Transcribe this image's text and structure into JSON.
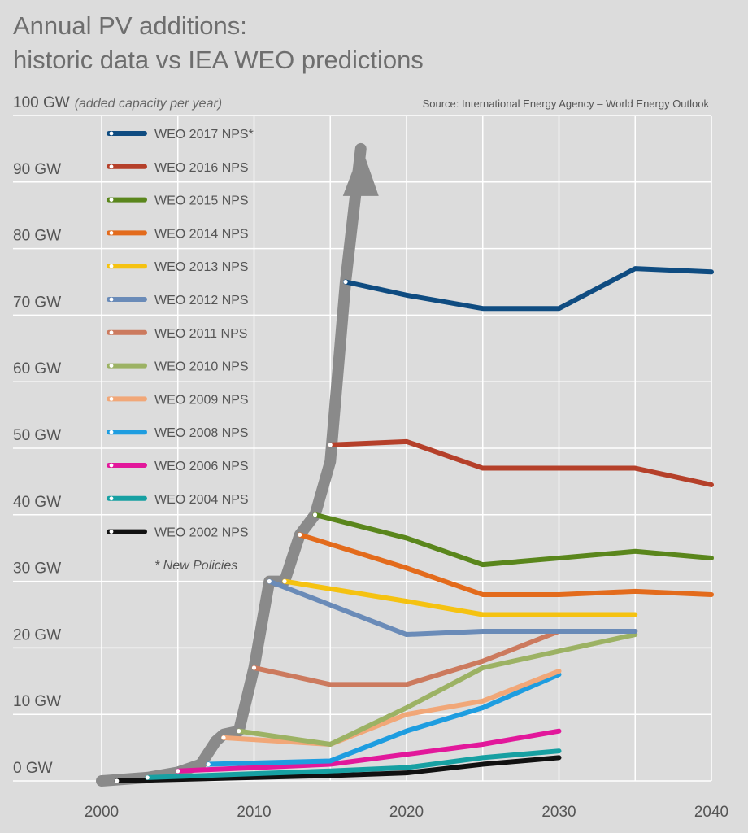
{
  "chart_data": {
    "type": "line",
    "title_line1": "Annual PV additions:",
    "title_line2": "historic data vs IEA WEO predictions",
    "ylabel": "100 GW",
    "ylabel_note": "(added capacity per year)",
    "source": "Source: International Energy Agency – World Energy Outlook",
    "footnote": "* New Policies",
    "x_ticks": [
      2000,
      2010,
      2020,
      2030,
      2040
    ],
    "y_ticks": [
      {
        "v": 0,
        "label": "0 GW"
      },
      {
        "v": 10,
        "label": "10 GW"
      },
      {
        "v": 20,
        "label": "20 GW"
      },
      {
        "v": 30,
        "label": "30 GW"
      },
      {
        "v": 40,
        "label": "40 GW"
      },
      {
        "v": 50,
        "label": "50 GW"
      },
      {
        "v": 60,
        "label": "60 GW"
      },
      {
        "v": 70,
        "label": "70 GW"
      },
      {
        "v": 80,
        "label": "80 GW"
      },
      {
        "v": 90,
        "label": "90 GW"
      }
    ],
    "xlim": [
      2000,
      2040
    ],
    "ylim": [
      0,
      100
    ],
    "grid": true,
    "legend_position": "top-left",
    "historic": {
      "color": "#8a8a8a",
      "points": [
        [
          2000,
          0
        ],
        [
          2003,
          0.5
        ],
        [
          2005,
          1.3
        ],
        [
          2006.5,
          2.5
        ],
        [
          2007.5,
          6
        ],
        [
          2008,
          7
        ],
        [
          2009,
          7.5
        ],
        [
          2010,
          17
        ],
        [
          2011,
          30
        ],
        [
          2012,
          30
        ],
        [
          2013,
          37
        ],
        [
          2014,
          40
        ],
        [
          2015,
          48
        ],
        [
          2016,
          75
        ],
        [
          2017,
          95
        ]
      ]
    },
    "series": [
      {
        "name": "WEO 2017 NPS*",
        "color": "#0f4c81",
        "points": [
          [
            2016,
            75
          ],
          [
            2020,
            73
          ],
          [
            2025,
            71
          ],
          [
            2030,
            71
          ],
          [
            2035,
            77
          ],
          [
            2040,
            76.5
          ]
        ]
      },
      {
        "name": "WEO 2016 NPS",
        "color": "#b5402a",
        "points": [
          [
            2015,
            50.5
          ],
          [
            2020,
            51
          ],
          [
            2025,
            47
          ],
          [
            2030,
            47
          ],
          [
            2035,
            47
          ],
          [
            2040,
            44.5
          ]
        ]
      },
      {
        "name": "WEO 2015 NPS",
        "color": "#5a861c",
        "points": [
          [
            2014,
            40
          ],
          [
            2020,
            36.5
          ],
          [
            2025,
            32.5
          ],
          [
            2030,
            33.5
          ],
          [
            2035,
            34.5
          ],
          [
            2040,
            33.5
          ]
        ]
      },
      {
        "name": "WEO 2014 NPS",
        "color": "#e36b1c",
        "points": [
          [
            2013,
            37
          ],
          [
            2020,
            32
          ],
          [
            2025,
            28
          ],
          [
            2030,
            28
          ],
          [
            2035,
            28.5
          ],
          [
            2040,
            28
          ]
        ]
      },
      {
        "name": "WEO 2013 NPS",
        "color": "#f5c211",
        "points": [
          [
            2012,
            30
          ],
          [
            2020,
            27
          ],
          [
            2025,
            25
          ],
          [
            2030,
            25
          ],
          [
            2035,
            25
          ]
        ]
      },
      {
        "name": "WEO 2012 NPS",
        "color": "#6a8bb8",
        "points": [
          [
            2011,
            30
          ],
          [
            2020,
            22
          ],
          [
            2025,
            22.5
          ],
          [
            2030,
            22.5
          ],
          [
            2035,
            22.5
          ]
        ]
      },
      {
        "name": "WEO 2011 NPS",
        "color": "#cc7a5e",
        "points": [
          [
            2010,
            17
          ],
          [
            2015,
            14.5
          ],
          [
            2020,
            14.5
          ],
          [
            2025,
            18
          ],
          [
            2030,
            22.5
          ],
          [
            2035,
            22.5
          ]
        ]
      },
      {
        "name": "WEO 2010 NPS",
        "color": "#9cb264",
        "points": [
          [
            2009,
            7.5
          ],
          [
            2015,
            5.5
          ],
          [
            2020,
            11
          ],
          [
            2025,
            17
          ],
          [
            2030,
            19.5
          ],
          [
            2035,
            22
          ]
        ]
      },
      {
        "name": "WEO 2009 NPS",
        "color": "#f1a778",
        "points": [
          [
            2008,
            6.5
          ],
          [
            2015,
            5.5
          ],
          [
            2020,
            10
          ],
          [
            2025,
            12
          ],
          [
            2030,
            16.5
          ]
        ]
      },
      {
        "name": "WEO 2008 NPS",
        "color": "#1e9de0",
        "points": [
          [
            2007,
            2.5
          ],
          [
            2015,
            3
          ],
          [
            2020,
            7.5
          ],
          [
            2025,
            11
          ],
          [
            2030,
            16
          ]
        ]
      },
      {
        "name": "WEO  2006 NPS",
        "color": "#e2189b",
        "points": [
          [
            2005,
            1.5
          ],
          [
            2015,
            2.5
          ],
          [
            2020,
            4
          ],
          [
            2025,
            5.5
          ],
          [
            2030,
            7.5
          ]
        ]
      },
      {
        "name": "WEO 2004 NPS",
        "color": "#17a0a2",
        "points": [
          [
            2003,
            0.5
          ],
          [
            2015,
            1.5
          ],
          [
            2020,
            2
          ],
          [
            2025,
            3.5
          ],
          [
            2030,
            4.5
          ]
        ]
      },
      {
        "name": "WEO 2002 NPS",
        "color": "#111111",
        "points": [
          [
            2001,
            0
          ],
          [
            2015,
            0.8
          ],
          [
            2020,
            1.2
          ],
          [
            2025,
            2.5
          ],
          [
            2030,
            3.5
          ]
        ]
      }
    ]
  }
}
